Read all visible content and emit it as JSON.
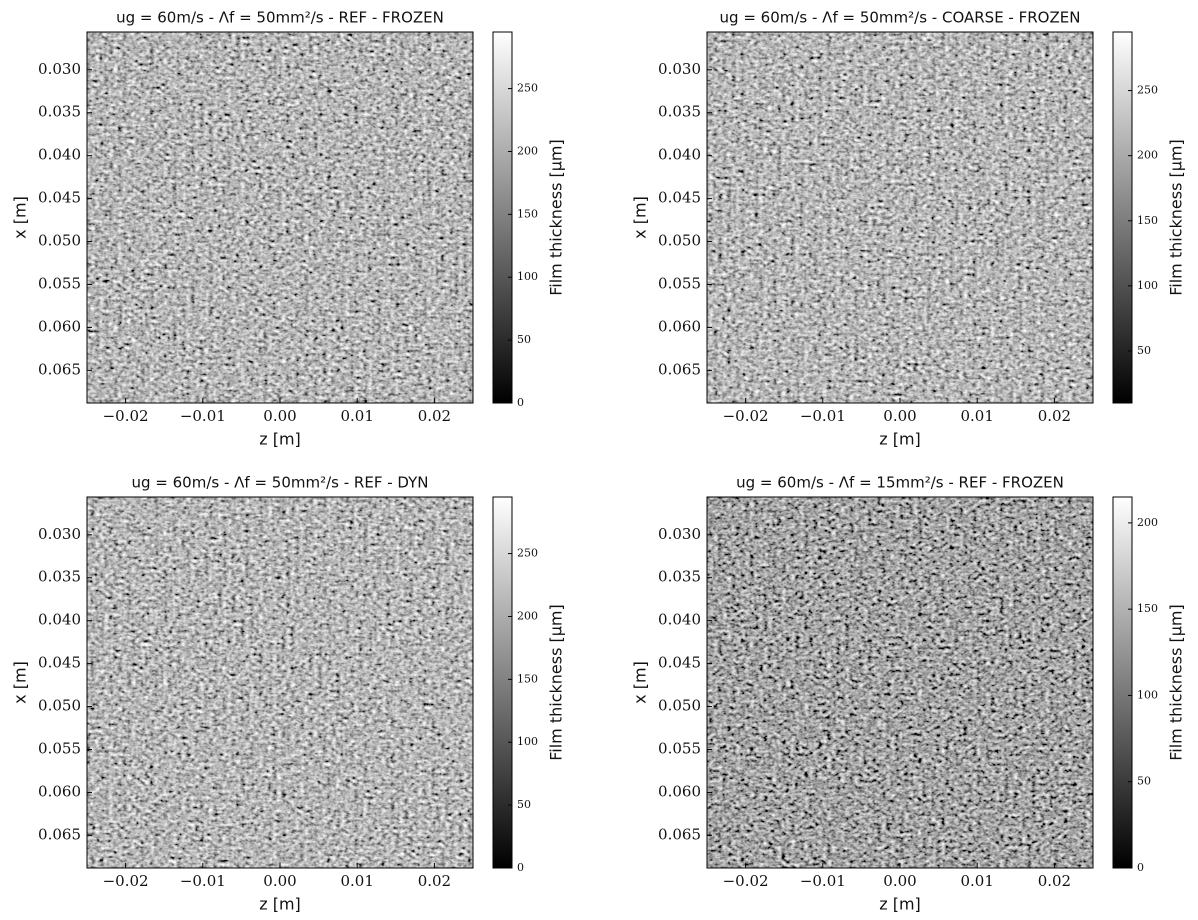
{
  "chart_data": [
    {
      "type": "heatmap",
      "title": "ug = 60m/s - Λf = 50mm²/s - REF - FROZEN",
      "x_label": "z [m]",
      "y_label": "x [m]",
      "colorbar_label": "Film thickness [μm]",
      "xlim": [
        -0.025,
        0.025
      ],
      "xticks": [
        {
          "value": -0.02,
          "label": "−0.02"
        },
        {
          "value": -0.01,
          "label": "−0.01"
        },
        {
          "value": 0,
          "label": "0.00"
        },
        {
          "value": 0.01,
          "label": "0.01"
        },
        {
          "value": 0.02,
          "label": "0.02"
        }
      ],
      "ylim": [
        0.0688,
        0.0256
      ],
      "yticks": [
        {
          "value": 0.03,
          "label": "0.030"
        },
        {
          "value": 0.035,
          "label": "0.035"
        },
        {
          "value": 0.04,
          "label": "0.040"
        },
        {
          "value": 0.045,
          "label": "0.045"
        },
        {
          "value": 0.05,
          "label": "0.050"
        },
        {
          "value": 0.055,
          "label": "0.055"
        },
        {
          "value": 0.06,
          "label": "0.060"
        },
        {
          "value": 0.065,
          "label": "0.065"
        }
      ],
      "clim": [
        0,
        295
      ],
      "cticks": [
        0,
        50,
        100,
        150,
        200,
        250
      ]
    },
    {
      "type": "heatmap",
      "title": "ug = 60m/s - Λf = 50mm²/s - COARSE - FROZEN",
      "x_label": "z [m]",
      "y_label": "x [m]",
      "colorbar_label": "Film thickness [μm]",
      "xlim": [
        -0.025,
        0.025
      ],
      "xticks": [
        {
          "value": -0.02,
          "label": "−0.02"
        },
        {
          "value": -0.01,
          "label": "−0.01"
        },
        {
          "value": 0,
          "label": "0.00"
        },
        {
          "value": 0.01,
          "label": "0.01"
        },
        {
          "value": 0.02,
          "label": "0.02"
        }
      ],
      "ylim": [
        0.0688,
        0.0256
      ],
      "yticks": [
        {
          "value": 0.03,
          "label": "0.030"
        },
        {
          "value": 0.035,
          "label": "0.035"
        },
        {
          "value": 0.04,
          "label": "0.040"
        },
        {
          "value": 0.045,
          "label": "0.045"
        },
        {
          "value": 0.05,
          "label": "0.050"
        },
        {
          "value": 0.055,
          "label": "0.055"
        },
        {
          "value": 0.06,
          "label": "0.060"
        },
        {
          "value": 0.065,
          "label": "0.065"
        }
      ],
      "clim": [
        10,
        295
      ],
      "cticks": [
        50,
        100,
        150,
        200,
        250
      ]
    },
    {
      "type": "heatmap",
      "title": "ug = 60m/s - Λf = 50mm²/s - REF - DYN",
      "x_label": "z [m]",
      "y_label": "x [m]",
      "colorbar_label": "Film thickness [μm]",
      "xlim": [
        -0.025,
        0.025
      ],
      "xticks": [
        {
          "value": -0.02,
          "label": "−0.02"
        },
        {
          "value": -0.01,
          "label": "−0.01"
        },
        {
          "value": 0,
          "label": "0.00"
        },
        {
          "value": 0.01,
          "label": "0.01"
        },
        {
          "value": 0.02,
          "label": "0.02"
        }
      ],
      "ylim": [
        0.0688,
        0.0256
      ],
      "yticks": [
        {
          "value": 0.03,
          "label": "0.030"
        },
        {
          "value": 0.035,
          "label": "0.035"
        },
        {
          "value": 0.04,
          "label": "0.040"
        },
        {
          "value": 0.045,
          "label": "0.045"
        },
        {
          "value": 0.05,
          "label": "0.050"
        },
        {
          "value": 0.055,
          "label": "0.055"
        },
        {
          "value": 0.06,
          "label": "0.060"
        },
        {
          "value": 0.065,
          "label": "0.065"
        }
      ],
      "clim": [
        0,
        295
      ],
      "cticks": [
        0,
        50,
        100,
        150,
        200,
        250
      ]
    },
    {
      "type": "heatmap",
      "title": "ug = 60m/s - Λf = 15mm²/s - REF - FROZEN",
      "x_label": "z [m]",
      "y_label": "x [m]",
      "colorbar_label": "Film thickness [μm]",
      "xlim": [
        -0.025,
        0.025
      ],
      "xticks": [
        {
          "value": -0.02,
          "label": "−0.02"
        },
        {
          "value": -0.01,
          "label": "−0.01"
        },
        {
          "value": 0,
          "label": "0.00"
        },
        {
          "value": 0.01,
          "label": "0.01"
        },
        {
          "value": 0.02,
          "label": "0.02"
        }
      ],
      "ylim": [
        0.0688,
        0.0256
      ],
      "yticks": [
        {
          "value": 0.03,
          "label": "0.030"
        },
        {
          "value": 0.035,
          "label": "0.035"
        },
        {
          "value": 0.04,
          "label": "0.040"
        },
        {
          "value": 0.045,
          "label": "0.045"
        },
        {
          "value": 0.05,
          "label": "0.050"
        },
        {
          "value": 0.055,
          "label": "0.055"
        },
        {
          "value": 0.06,
          "label": "0.060"
        },
        {
          "value": 0.065,
          "label": "0.065"
        }
      ],
      "clim": [
        0,
        215
      ],
      "cticks": [
        0,
        50,
        100,
        150,
        200
      ]
    }
  ]
}
